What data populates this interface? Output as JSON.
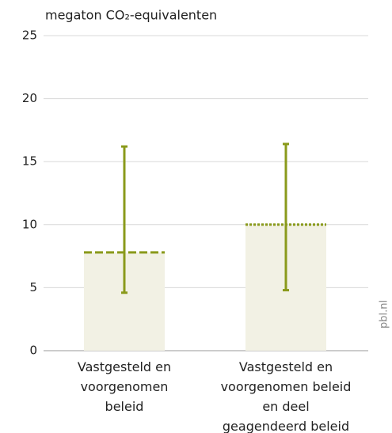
{
  "chart_data": {
    "type": "bar",
    "y_label": "megaton CO₂-equivalenten",
    "source": "pbl.nl",
    "categories": [
      "Vastgesteld en voorgenomen beleid",
      "Vastgesteld en voorgenomen beleid en deel geagendeerd beleid"
    ],
    "values": [
      7.8,
      10
    ],
    "ranges": [
      [
        4.6,
        16.2
      ],
      [
        4.8,
        16.4
      ]
    ],
    "line_styles": [
      "dashed",
      "dotted"
    ],
    "color": "#8a9a1b",
    "bar_color": "#f2f1e4",
    "ylim": [
      0,
      25
    ],
    "yticks": [
      0,
      5,
      10,
      15,
      20,
      25
    ],
    "grid": true
  }
}
